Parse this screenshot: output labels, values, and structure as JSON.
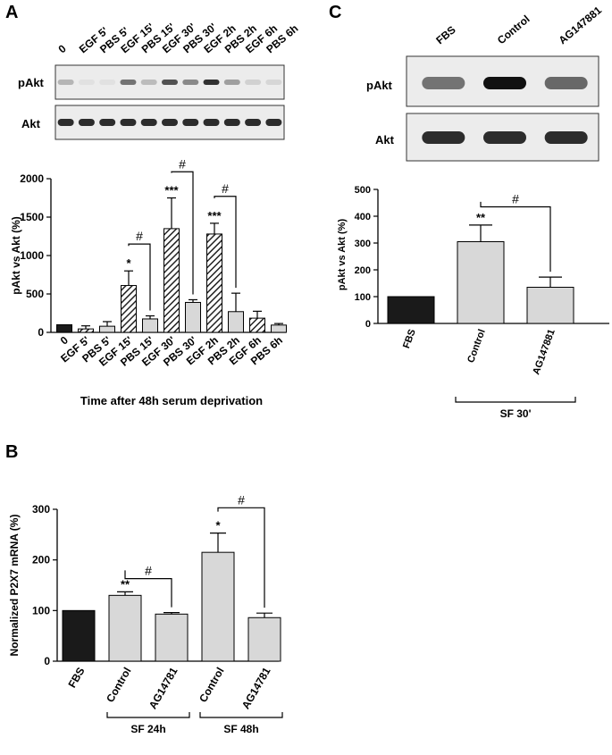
{
  "panels": {
    "A": {
      "letter": "A",
      "blot_lanes": [
        "0",
        "EGF 5'",
        "PBS 5'",
        "EGF 15'",
        "PBS 15'",
        "EGF 30'",
        "PBS 30'",
        "EGF 2h",
        "PBS 2h",
        "EGF 6h",
        "PBS 6h"
      ],
      "blot_rows": [
        "pAkt",
        "Akt"
      ],
      "pakt_intensity": [
        0.25,
        0.05,
        0.05,
        0.55,
        0.22,
        0.7,
        0.45,
        0.85,
        0.35,
        0.12,
        0.1
      ]
    },
    "B": {
      "letter": "B"
    },
    "C": {
      "letter": "C",
      "blot_lanes": [
        "FBS",
        "Control",
        "AG147881"
      ],
      "blot_rows": [
        "pAkt",
        "Akt"
      ],
      "pakt_intensity": [
        0.55,
        1.0,
        0.6
      ]
    }
  },
  "colors": {
    "black_bar": "#1a1a1a",
    "gray_bar": "#d8d8d8",
    "axis": "#000000"
  },
  "chart_data": [
    {
      "id": "A",
      "type": "bar",
      "categories": [
        "0",
        "EGF 5'",
        "PBS 5'",
        "EGF 15'",
        "PBS 15'",
        "EGF 30'",
        "PBS 30'",
        "EGF 2h",
        "PBS 2h",
        "EGF 6h",
        "PBS 6h"
      ],
      "values": [
        100,
        45,
        80,
        610,
        175,
        1350,
        390,
        1280,
        270,
        185,
        95
      ],
      "errors": [
        0,
        40,
        60,
        190,
        40,
        400,
        35,
        140,
        240,
        90,
        20
      ],
      "fills": [
        "black",
        "hatch",
        "gray",
        "hatch",
        "gray",
        "hatch",
        "gray",
        "hatch",
        "gray",
        "hatch",
        "gray"
      ],
      "stars": [
        "",
        "",
        "",
        "*",
        "",
        "***",
        "",
        "***",
        "",
        "",
        ""
      ],
      "hash_brackets": [
        {
          "from": "EGF 15'",
          "to": "PBS 15'",
          "label": "#"
        },
        {
          "from": "EGF 30'",
          "to": "PBS 30'",
          "label": "#"
        },
        {
          "from": "EGF 2h",
          "to": "PBS 2h",
          "label": "#"
        }
      ],
      "ylim": [
        0,
        2000
      ],
      "yticks": [
        "0",
        "500",
        "1000",
        "1500",
        "2000"
      ],
      "ylabel": "pAkt vs Akt (%)",
      "xlabel": "Time after 48h serum deprivation"
    },
    {
      "id": "B",
      "type": "bar",
      "categories": [
        "FBS",
        "Control",
        "AG14781",
        "Control",
        "AG14781"
      ],
      "values": [
        100,
        130,
        93,
        215,
        86
      ],
      "errors": [
        0,
        7,
        3,
        38,
        9
      ],
      "fills": [
        "black",
        "gray",
        "gray",
        "gray",
        "gray"
      ],
      "stars": [
        "",
        "**",
        "",
        "*",
        ""
      ],
      "hash_brackets": [
        {
          "from": "Control",
          "to": "AG14781",
          "label": "#",
          "group": 0
        },
        {
          "from": "Control",
          "to": "AG14781",
          "label": "#",
          "group": 1
        }
      ],
      "groups": [
        "SF 24h",
        "SF 48h"
      ],
      "ylim": [
        0,
        300
      ],
      "yticks": [
        "0",
        "100",
        "200",
        "300"
      ],
      "ylabel": "Normalized P2X7 mRNA (%)"
    },
    {
      "id": "C",
      "type": "bar",
      "categories": [
        "FBS",
        "Control",
        "AG147881"
      ],
      "values": [
        100,
        305,
        135
      ],
      "errors": [
        0,
        62,
        38
      ],
      "fills": [
        "black",
        "gray",
        "gray"
      ],
      "stars": [
        "",
        "**",
        ""
      ],
      "hash_brackets": [
        {
          "from": "Control",
          "to": "AG147881",
          "label": "#"
        }
      ],
      "groups": [
        "SF 30'"
      ],
      "ylim": [
        0,
        500
      ],
      "yticks": [
        "0",
        "100",
        "200",
        "300",
        "400",
        "500"
      ],
      "ylabel": "pAkt vs Akt (%)"
    }
  ]
}
